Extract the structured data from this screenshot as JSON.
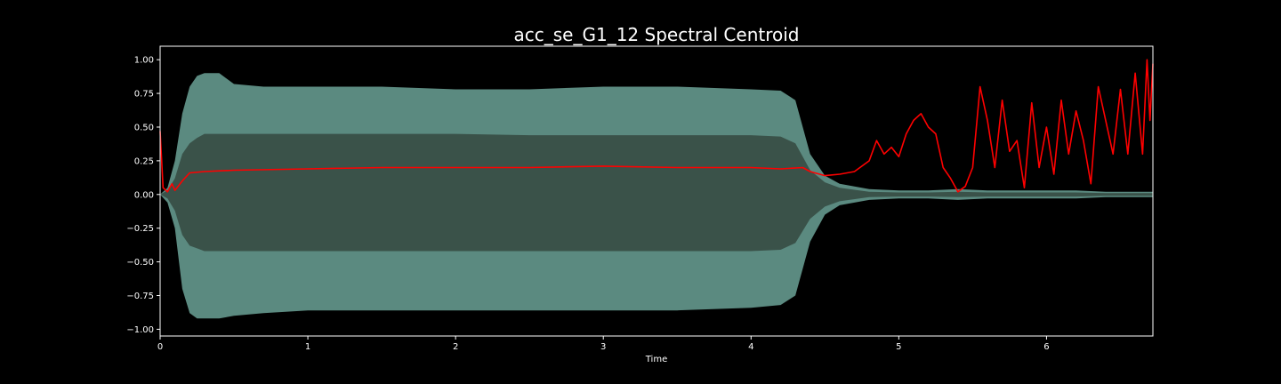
{
  "chart_data": {
    "type": "line",
    "title": "acc_se_G1_12 Spectral Centroid",
    "xlabel": "Time",
    "ylabel": "",
    "xlim": [
      0,
      6.72
    ],
    "ylim": [
      -1.05,
      1.1
    ],
    "x_ticks": [
      0,
      1,
      2,
      3,
      4,
      5,
      6
    ],
    "x_tick_labels": [
      "0",
      "1",
      "2",
      "3",
      "4",
      "5",
      "6"
    ],
    "y_ticks": [
      1.0,
      0.75,
      0.5,
      0.25,
      0.0,
      -0.25,
      -0.5,
      -0.75,
      -1.0
    ],
    "y_tick_labels": [
      "1.00",
      "0.75",
      "0.50",
      "0.25",
      "0.00",
      "−0.25",
      "−0.50",
      "−0.75",
      "−1.00"
    ],
    "grid": false,
    "legend": "none",
    "colors": {
      "background": "#000000",
      "axes": "#ffffff",
      "waveform_outer": "#5b8a80",
      "waveform_inner": "#3a5249",
      "centroid": "#ff0000"
    },
    "series": [
      {
        "kind": "waveform-envelope",
        "x": [
          0,
          0.05,
          0.1,
          0.15,
          0.2,
          0.25,
          0.3,
          0.4,
          0.5,
          0.7,
          1.0,
          1.5,
          2.0,
          2.5,
          3.0,
          3.5,
          4.0,
          4.2,
          4.3,
          4.35,
          4.4,
          4.5,
          4.6,
          4.8,
          5.0,
          5.2,
          5.4,
          5.6,
          5.8,
          6.0,
          6.2,
          6.4,
          6.72
        ],
        "upper": [
          0.0,
          0.05,
          0.25,
          0.6,
          0.8,
          0.88,
          0.9,
          0.9,
          0.82,
          0.8,
          0.8,
          0.8,
          0.78,
          0.78,
          0.8,
          0.8,
          0.78,
          0.77,
          0.7,
          0.5,
          0.3,
          0.14,
          0.08,
          0.04,
          0.03,
          0.03,
          0.04,
          0.03,
          0.03,
          0.03,
          0.03,
          0.02,
          0.02
        ],
        "upper_inner": [
          0.0,
          0.03,
          0.12,
          0.3,
          0.38,
          0.42,
          0.45,
          0.45,
          0.45,
          0.45,
          0.45,
          0.45,
          0.45,
          0.44,
          0.44,
          0.44,
          0.44,
          0.43,
          0.38,
          0.28,
          0.18,
          0.09,
          0.05,
          0.02,
          0.015,
          0.015,
          0.02,
          0.015,
          0.015,
          0.015,
          0.015,
          0.01,
          0.01
        ],
        "lower": [
          0.0,
          -0.06,
          -0.25,
          -0.7,
          -0.88,
          -0.92,
          -0.92,
          -0.92,
          -0.9,
          -0.88,
          -0.86,
          -0.86,
          -0.86,
          -0.86,
          -0.86,
          -0.86,
          -0.84,
          -0.82,
          -0.75,
          -0.55,
          -0.35,
          -0.15,
          -0.08,
          -0.04,
          -0.03,
          -0.03,
          -0.04,
          -0.03,
          -0.03,
          -0.03,
          -0.03,
          -0.02,
          -0.02
        ],
        "lower_inner": [
          0.0,
          -0.03,
          -0.12,
          -0.3,
          -0.38,
          -0.4,
          -0.42,
          -0.42,
          -0.42,
          -0.42,
          -0.42,
          -0.42,
          -0.42,
          -0.42,
          -0.42,
          -0.42,
          -0.42,
          -0.41,
          -0.36,
          -0.27,
          -0.18,
          -0.09,
          -0.05,
          -0.02,
          -0.015,
          -0.015,
          -0.02,
          -0.015,
          -0.015,
          -0.015,
          -0.015,
          -0.01,
          -0.01
        ]
      },
      {
        "kind": "spectral-centroid",
        "x": [
          0,
          0.02,
          0.05,
          0.08,
          0.1,
          0.15,
          0.2,
          0.3,
          0.5,
          1.0,
          1.5,
          2.0,
          2.5,
          3.0,
          3.5,
          4.0,
          4.2,
          4.35,
          4.4,
          4.5,
          4.6,
          4.7,
          4.8,
          4.85,
          4.9,
          4.95,
          5.0,
          5.05,
          5.1,
          5.15,
          5.2,
          5.25,
          5.3,
          5.35,
          5.4,
          5.45,
          5.5,
          5.55,
          5.6,
          5.65,
          5.7,
          5.75,
          5.8,
          5.85,
          5.9,
          5.95,
          6.0,
          6.05,
          6.1,
          6.15,
          6.2,
          6.25,
          6.3,
          6.35,
          6.4,
          6.45,
          6.5,
          6.55,
          6.6,
          6.65,
          6.68,
          6.7,
          6.72
        ],
        "y": [
          0.47,
          0.05,
          0.02,
          0.08,
          0.03,
          0.1,
          0.16,
          0.17,
          0.18,
          0.19,
          0.2,
          0.2,
          0.2,
          0.21,
          0.2,
          0.2,
          0.19,
          0.2,
          0.17,
          0.14,
          0.15,
          0.17,
          0.25,
          0.4,
          0.3,
          0.35,
          0.28,
          0.45,
          0.55,
          0.6,
          0.5,
          0.45,
          0.2,
          0.12,
          0.02,
          0.06,
          0.2,
          0.8,
          0.55,
          0.2,
          0.7,
          0.32,
          0.4,
          0.05,
          0.68,
          0.2,
          0.5,
          0.15,
          0.7,
          0.3,
          0.62,
          0.4,
          0.08,
          0.8,
          0.55,
          0.3,
          0.78,
          0.3,
          0.9,
          0.3,
          1.0,
          0.55,
          0.97
        ]
      }
    ]
  }
}
